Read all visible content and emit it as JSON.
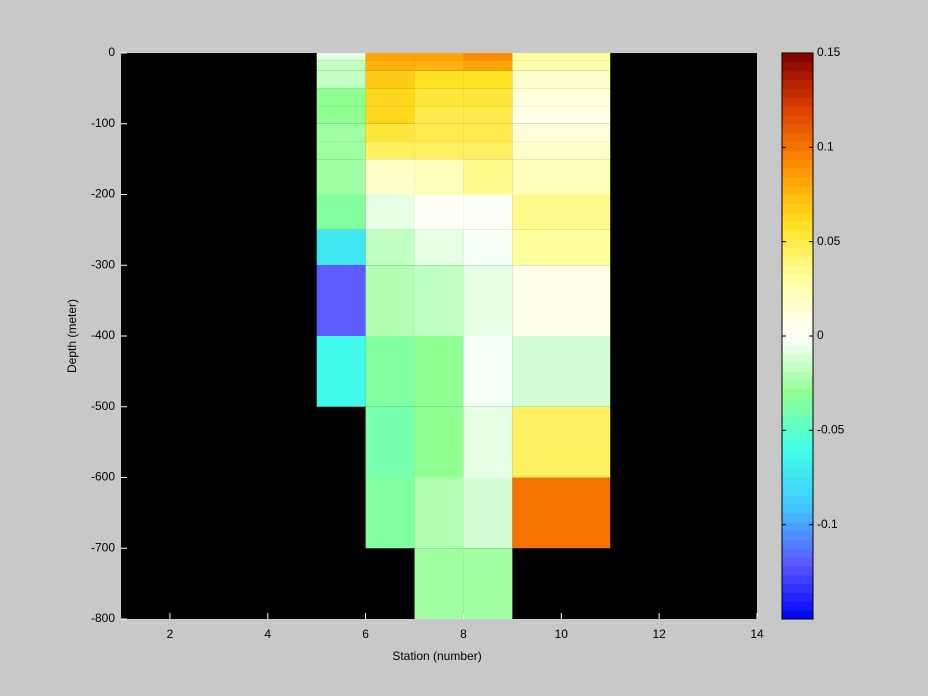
{
  "chart_data": {
    "type": "heatmap",
    "xlabel": "Station (number)",
    "ylabel": "Depth (meter)",
    "xlim": [
      1,
      14
    ],
    "xticks": [
      2,
      4,
      6,
      8,
      10,
      12,
      14
    ],
    "ylim": [
      -800,
      0
    ],
    "yticks": [
      0,
      -100,
      -200,
      -300,
      -400,
      -500,
      -600,
      -700,
      -800
    ],
    "x_edges": [
      5,
      6,
      7,
      8,
      9,
      11
    ],
    "y_edges": [
      0,
      -10,
      -25,
      -50,
      -75,
      -100,
      -125,
      -150,
      -200,
      -250,
      -300,
      -400,
      -500,
      -600,
      -700,
      -800
    ],
    "values": [
      [
        -0.005,
        0.08,
        0.08,
        0.09,
        0.03
      ],
      [
        -0.015,
        0.075,
        0.075,
        0.08,
        0.025
      ],
      [
        -0.015,
        0.07,
        0.06,
        0.06,
        0.015
      ],
      [
        -0.03,
        0.065,
        0.055,
        0.055,
        0.01
      ],
      [
        -0.03,
        0.065,
        0.05,
        0.05,
        0.008
      ],
      [
        -0.025,
        0.055,
        0.05,
        0.05,
        0.012
      ],
      [
        -0.025,
        0.045,
        0.045,
        0.045,
        0.018
      ],
      [
        -0.025,
        0.015,
        0.02,
        0.035,
        0.02
      ],
      [
        -0.035,
        -0.008,
        0.003,
        0.003,
        0.035
      ],
      [
        -0.075,
        -0.015,
        -0.005,
        -0.002,
        0.03
      ],
      [
        -0.12,
        -0.02,
        -0.015,
        -0.008,
        0.008
      ],
      [
        -0.065,
        -0.035,
        -0.03,
        -0.002,
        -0.01
      ],
      [
        null,
        -0.04,
        -0.03,
        -0.005,
        0.045
      ],
      [
        null,
        -0.035,
        -0.02,
        -0.01,
        0.1
      ],
      [
        null,
        null,
        -0.025,
        -0.025,
        null
      ]
    ],
    "background": "#000000",
    "clim": [
      -0.15,
      0.15
    ],
    "colorbar_ticks": [
      0.15,
      0.1,
      0.05,
      0,
      -0.05,
      -0.1
    ],
    "colormap": [
      "#0000ff",
      "#5a5aff",
      "#40c8ff",
      "#40ffe8",
      "#90ff90",
      "#ffffff",
      "#ffffa0",
      "#ffe020",
      "#ff9000",
      "#e04000",
      "#800000"
    ],
    "colormap_levels": 64
  }
}
